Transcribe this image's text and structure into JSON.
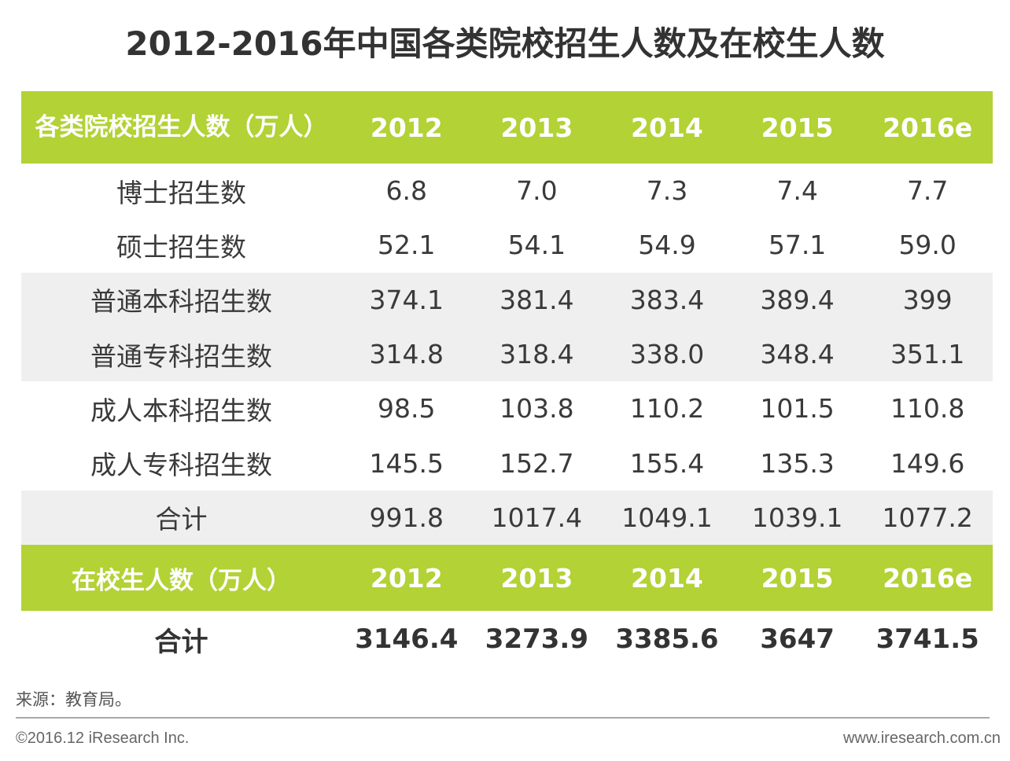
{
  "title": "2012-2016年中国各类院校招生人数及在校生人数",
  "enrollment_table": {
    "header_label": "各类院校招生人数（万人）",
    "years": [
      "2012",
      "2013",
      "2014",
      "2015",
      "2016e"
    ],
    "rows": [
      {
        "label": "博士招生数",
        "values": [
          "6.8",
          "7.0",
          "7.3",
          "7.4",
          "7.7"
        ]
      },
      {
        "label": "硕士招生数",
        "values": [
          "52.1",
          "54.1",
          "54.9",
          "57.1",
          "59.0"
        ]
      },
      {
        "label": "普通本科招生数",
        "values": [
          "374.1",
          "381.4",
          "383.4",
          "389.4",
          "399"
        ]
      },
      {
        "label": "普通专科招生数",
        "values": [
          "314.8",
          "318.4",
          "338.0",
          "348.4",
          "351.1"
        ]
      },
      {
        "label": "成人本科招生数",
        "values": [
          "98.5",
          "103.8",
          "110.2",
          "101.5",
          "110.8"
        ]
      },
      {
        "label": "成人专科招生数",
        "values": [
          "145.5",
          "152.7",
          "155.4",
          "135.3",
          "149.6"
        ]
      },
      {
        "label": "合计",
        "values": [
          "991.8",
          "1017.4",
          "1049.1",
          "1039.1",
          "1077.2"
        ]
      }
    ]
  },
  "students_table": {
    "header_label": "在校生人数（万人）",
    "years": [
      "2012",
      "2013",
      "2014",
      "2015",
      "2016e"
    ],
    "total": {
      "label": "合计",
      "values": [
        "3146.4",
        "3273.9",
        "3385.6",
        "3647",
        "3741.5"
      ]
    }
  },
  "colors": {
    "header_green": "#b2d235",
    "row_shade": "#efefef"
  },
  "footer": {
    "source": "来源：教育局。",
    "copyright": "©2016.12 iResearch Inc.",
    "website": "www.iresearch.com.cn"
  }
}
